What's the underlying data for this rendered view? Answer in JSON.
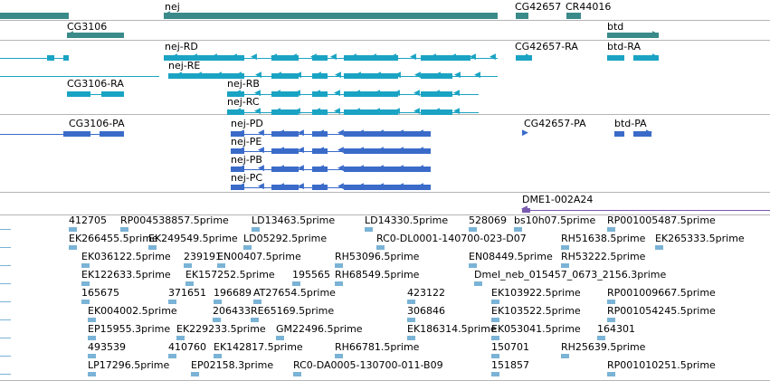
{
  "colors": {
    "gene": "#3a8a8a",
    "mrna": "#1aa3c3",
    "cds": "#3a6bc9",
    "misc": "#7a5ab0",
    "est": "#7ab3d6",
    "divider": "#b5b5b5"
  },
  "tracks": {
    "genes": {
      "labels": [
        "nej",
        "CG42657",
        "CR44016",
        "CG3106",
        "btd"
      ]
    },
    "transcripts": {
      "labels": [
        "nej-RD",
        "CG42657-RA",
        "btd-RA",
        "nej-RE",
        "CG3106-RA",
        "nej-RB",
        "nej-RC"
      ]
    },
    "cds": {
      "labels": [
        "CG3106-PA",
        "nej-PD",
        "CG42657-PA",
        "btd-PA",
        "nej-PE",
        "nej-PB",
        "nej-PC"
      ]
    },
    "misc": {
      "labels": [
        "DME1-002A24"
      ]
    },
    "est": {
      "rows": [
        [
          "412705",
          "RP004538857.5prime",
          "LD13463.5prime",
          "LD14330.5prime",
          "528069",
          "bs10h07.5prime",
          "RP001005487.5prime"
        ],
        [
          "EK266455.5prime",
          "EK249549.5prime",
          "LD05292.5prime",
          "RC0-DL0001-140700-023-D07",
          "RH51638.5prime",
          "EK265333.5prime"
        ],
        [
          "EK036122.5prime",
          "239191",
          "EN00407.5prime",
          "RH53096.5prime",
          "EN08449.5prime",
          "RH53222.5prime"
        ],
        [
          "EK122633.5prime",
          "EK157252.5prime",
          "195565",
          "RH68549.5prime",
          "Dmel_neb_015457_0673_2156.3prime"
        ],
        [
          "165675",
          "371651",
          "196689",
          "AT27654.5prime",
          "423122",
          "EK103922.5prime",
          "RP001009667.5prime"
        ],
        [
          "EK004002.5prime",
          "206433",
          "RE65169.5prime",
          "306846",
          "EK103522.5prime",
          "RP001054245.5prime"
        ],
        [
          "EP15955.3prime",
          "EK229233.5prime",
          "GM22496.5prime",
          "EK186314.5prime",
          "EK053041.5prime",
          "164301"
        ],
        [
          "493539",
          "410760",
          "EK142817.5prime",
          "RH66781.5prime",
          "150701",
          "RH25639.5prime"
        ],
        [
          "LP17296.5prime",
          "EP02158.3prime",
          "RC0-DA0005-130700-011-B09",
          "151857",
          "RP001010251.5prime"
        ]
      ]
    }
  }
}
